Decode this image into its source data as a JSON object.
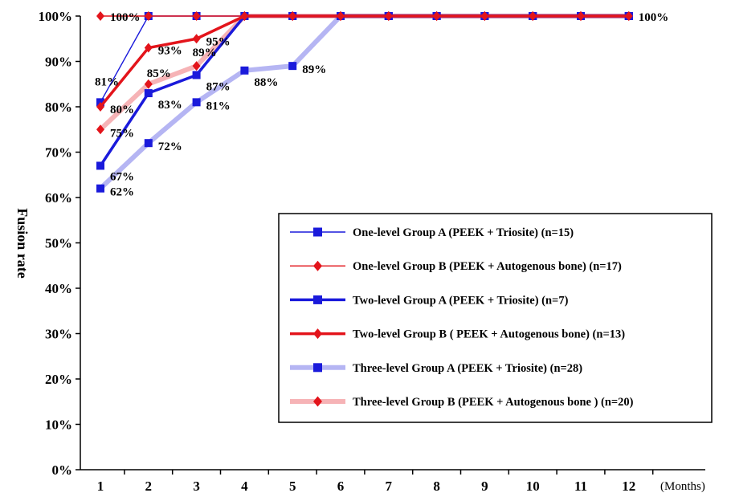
{
  "chart_data": {
    "type": "line",
    "ylabel": "Fusion rate",
    "x_unit_label": "(Months)",
    "x": [
      1,
      2,
      3,
      4,
      5,
      6,
      7,
      8,
      9,
      10,
      11,
      12
    ],
    "x_tick_labels": [
      "1",
      "2",
      "3",
      "4",
      "5",
      "6",
      "7",
      "8",
      "9",
      "10",
      "11",
      "12"
    ],
    "y_tick_labels": [
      "0%",
      "10%",
      "20%",
      "30%",
      "40%",
      "50%",
      "60%",
      "70%",
      "80%",
      "90%",
      "100%"
    ],
    "ylim": [
      0,
      100
    ],
    "legend_position": "center-right",
    "series": [
      {
        "name": "One-level Group A (PEEK + Triosite) (n=15)",
        "color": "#1a1adb",
        "marker": "square",
        "style": "thin",
        "values": [
          81,
          100,
          100,
          100,
          100,
          100,
          100,
          100,
          100,
          100,
          100,
          100
        ],
        "labels": [
          {
            "index": 0,
            "text": "81%"
          }
        ]
      },
      {
        "name": "One-level Group B (PEEK + Autogenous bone) (n=17)",
        "color": "#e3141b",
        "marker": "diamond",
        "style": "thin",
        "values": [
          100,
          100,
          100,
          100,
          100,
          100,
          100,
          100,
          100,
          100,
          100,
          100
        ],
        "labels": [
          {
            "index": 0,
            "text": "100%"
          },
          {
            "index": 11,
            "text": "100%"
          }
        ]
      },
      {
        "name": "Two-level Group A (PEEK + Triosite) (n=7)",
        "color": "#1a1adb",
        "marker": "square",
        "style": "thick",
        "values": [
          67,
          83,
          87,
          100,
          100,
          100,
          100,
          100,
          100,
          100,
          100,
          100
        ],
        "labels": [
          {
            "index": 0,
            "text": "67%"
          },
          {
            "index": 1,
            "text": "83%"
          },
          {
            "index": 2,
            "text": "87%"
          }
        ]
      },
      {
        "name": "Two-level Group B ( PEEK + Autogenous bone) (n=13)",
        "color": "#e3141b",
        "marker": "diamond",
        "style": "thick",
        "values": [
          80,
          93,
          95,
          100,
          100,
          100,
          100,
          100,
          100,
          100,
          100,
          100
        ],
        "labels": [
          {
            "index": 0,
            "text": "80%"
          },
          {
            "index": 1,
            "text": "93%"
          },
          {
            "index": 2,
            "text": "95%"
          }
        ]
      },
      {
        "name": "Three-level Group A (PEEK + Triosite) (n=28)",
        "color": "#1a1adb",
        "marker": "square",
        "style": "faded",
        "values": [
          62,
          72,
          81,
          88,
          89,
          100,
          100,
          100,
          100,
          100,
          100,
          100
        ],
        "labels": [
          {
            "index": 0,
            "text": "62%"
          },
          {
            "index": 1,
            "text": "72%"
          },
          {
            "index": 2,
            "text": "81%"
          },
          {
            "index": 3,
            "text": "88%"
          },
          {
            "index": 4,
            "text": "89%"
          }
        ]
      },
      {
        "name": "Three-level Group B (PEEK + Autogenous bone ) (n=20)",
        "color": "#e3141b",
        "marker": "diamond",
        "style": "faded",
        "values": [
          75,
          85,
          89,
          100,
          100,
          100,
          100,
          100,
          100,
          100,
          100,
          100
        ],
        "labels": [
          {
            "index": 0,
            "text": "75%"
          },
          {
            "index": 1,
            "text": "85%"
          },
          {
            "index": 2,
            "text": "89%"
          }
        ]
      }
    ]
  }
}
